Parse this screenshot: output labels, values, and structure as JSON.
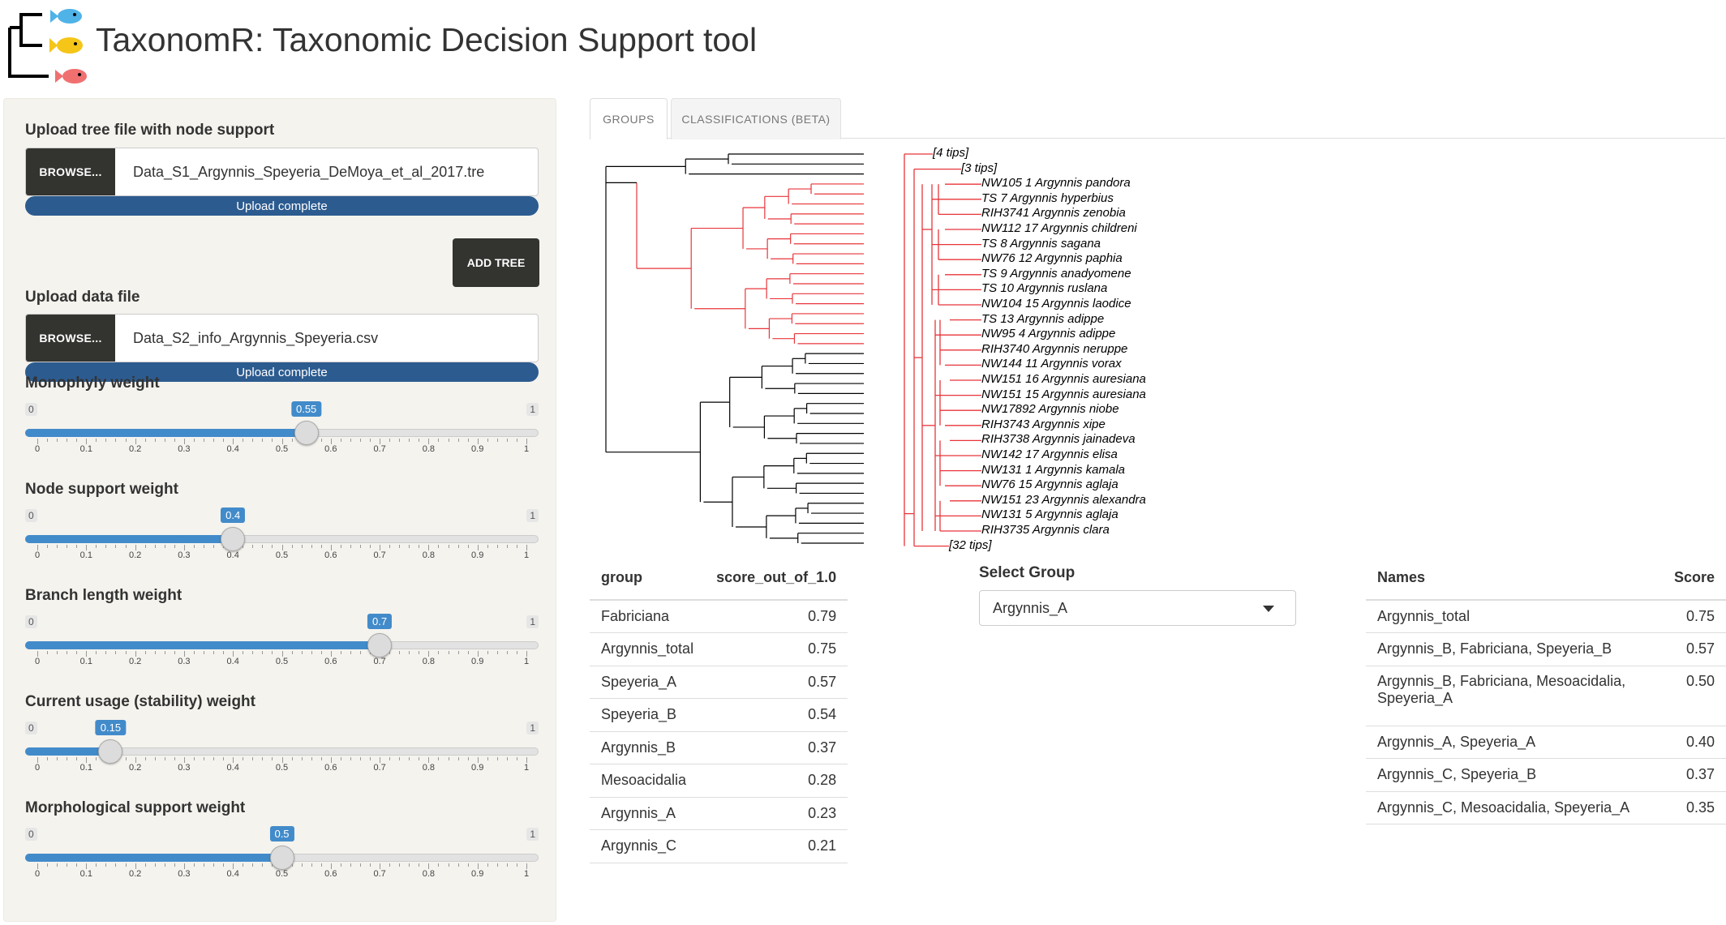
{
  "app": {
    "title": "TaxonomR: Taxonomic Decision Support tool",
    "logo_icon": "tree-fish-logo-icon"
  },
  "sidebar": {
    "tree_upload": {
      "label": "Upload tree file with node support",
      "browse_label": "BROWSE...",
      "file_name": "Data_S1_Argynnis_Speyeria_DeMoya_et_al_2017.tre",
      "status": "Upload complete"
    },
    "add_tree_label": "ADD TREE",
    "data_upload": {
      "label": "Upload data file",
      "browse_label": "BROWSE...",
      "file_name": "Data_S2_info_Argynnis_Speyeria.csv",
      "status": "Upload complete"
    },
    "sliders": [
      {
        "label": "Monophyly weight",
        "min": "0",
        "max": "1",
        "value": 0.55,
        "value_label": "0.55"
      },
      {
        "label": "Node support weight",
        "min": "0",
        "max": "1",
        "value": 0.4,
        "value_label": "0.4"
      },
      {
        "label": "Branch length weight",
        "min": "0",
        "max": "1",
        "value": 0.7,
        "value_label": "0.7"
      },
      {
        "label": "Current usage (stability) weight",
        "min": "0",
        "max": "1",
        "value": 0.15,
        "value_label": "0.15"
      },
      {
        "label": "Morphological support weight",
        "min": "0",
        "max": "1",
        "value": 0.5,
        "value_label": "0.5"
      }
    ],
    "tick_labels": [
      "0",
      "0.1",
      "0.2",
      "0.3",
      "0.4",
      "0.5",
      "0.6",
      "0.7",
      "0.8",
      "0.9",
      "1"
    ]
  },
  "tabs": [
    {
      "label": "GROUPS",
      "active": true
    },
    {
      "label": "CLASSIFICATIONS (BETA)",
      "active": false
    }
  ],
  "tree": {
    "highlight_color": "#e8353a",
    "base_color": "#000000",
    "tip_labels": [
      "[4 tips]",
      "[3 tips]",
      "NW105 1 Argynnis pandora",
      "TS 7 Argynnis hyperbius",
      "RIH3741 Argynnis zenobia",
      "NW112 17 Argynnis childreni",
      "TS 8 Argynnis sagana",
      "NW76 12 Argynnis paphia",
      "TS 9 Argynnis anadyomene",
      "TS 10 Argynnis ruslana",
      "NW104 15 Argynnis laodice",
      "TS 13 Argynnis adippe",
      "NW95 4 Argynnis adippe",
      "RIH3740 Argynnis neruppe",
      "NW144 11 Argynnis vorax",
      "NW151 16 Argynnis auresiana",
      "NW151 15 Argynnis auresiana",
      "NW17892 Argynnis niobe",
      "RIH3743 Argynnis xipe",
      "RIH3738 Argynnis jainadeva",
      "NW142 17 Argynnis elisa",
      "NW131 1 Argynnis kamala",
      "NW76 15 Argynnis aglaja",
      "NW151 23 Argynnis alexandra",
      "NW131 5 Argynnis aglaja",
      "RIH3735 Argynnis clara",
      "[32 tips]"
    ]
  },
  "groups_table": {
    "headers": [
      "group",
      "score_out_of_1.0"
    ],
    "rows": [
      [
        "Fabriciana",
        "0.79"
      ],
      [
        "Argynnis_total",
        "0.75"
      ],
      [
        "Speyeria_A",
        "0.57"
      ],
      [
        "Speyeria_B",
        "0.54"
      ],
      [
        "Argynnis_B",
        "0.37"
      ],
      [
        "Mesoacidalia",
        "0.28"
      ],
      [
        "Argynnis_A",
        "0.23"
      ],
      [
        "Argynnis_C",
        "0.21"
      ]
    ]
  },
  "select_group": {
    "label": "Select Group",
    "value": "Argynnis_A"
  },
  "names_table": {
    "headers": [
      "Names",
      "Score"
    ],
    "rows": [
      [
        "Argynnis_total",
        "0.75"
      ],
      [
        "Argynnis_B, Fabriciana, Speyeria_B",
        "0.57"
      ],
      [
        "Argynnis_B, Fabriciana, Mesoacidalia, Speyeria_A",
        "0.50"
      ],
      [
        "Argynnis_A, Speyeria_A",
        "0.40"
      ],
      [
        "Argynnis_C, Speyeria_B",
        "0.37"
      ],
      [
        "Argynnis_C, Mesoacidalia, Speyeria_A",
        "0.35"
      ]
    ]
  }
}
